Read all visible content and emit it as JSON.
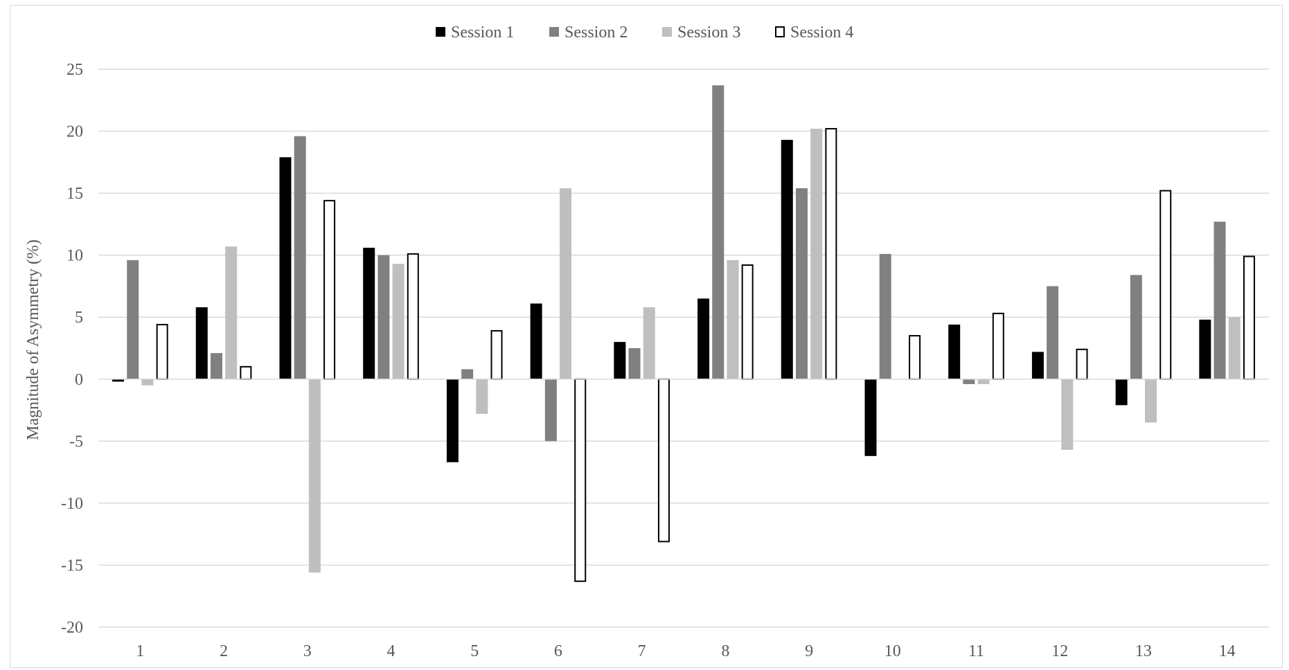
{
  "chart_data": {
    "type": "bar",
    "title": "",
    "xlabel": "",
    "ylabel": "Magnitude of Asymmetry (%)",
    "categories": [
      "1",
      "2",
      "3",
      "4",
      "5",
      "6",
      "7",
      "8",
      "9",
      "10",
      "11",
      "12",
      "13",
      "14"
    ],
    "ylim": [
      -20,
      25
    ],
    "yticks": [
      -20,
      -15,
      -10,
      -5,
      0,
      5,
      10,
      15,
      20,
      25
    ],
    "grid": true,
    "legend_position": "top-center",
    "series": [
      {
        "name": "Session 1",
        "color": "#000000",
        "fill": "solid",
        "values": [
          -0.2,
          5.8,
          17.9,
          10.6,
          -6.7,
          6.1,
          3.0,
          6.5,
          19.3,
          -6.2,
          4.4,
          2.2,
          -2.1,
          4.8
        ]
      },
      {
        "name": "Session 2",
        "color": "#808080",
        "fill": "solid",
        "values": [
          9.6,
          2.1,
          19.6,
          10.0,
          0.8,
          -5.0,
          2.5,
          23.7,
          15.4,
          10.1,
          -0.4,
          7.5,
          8.4,
          12.7
        ]
      },
      {
        "name": "Session 3",
        "color": "#bfbfbf",
        "fill": "solid",
        "values": [
          -0.5,
          10.7,
          -15.6,
          9.3,
          -2.8,
          15.4,
          5.8,
          9.6,
          20.2,
          0.0,
          -0.4,
          -5.7,
          -3.5,
          5.0
        ]
      },
      {
        "name": "Session 4",
        "color": "#000000",
        "fill": "outline",
        "values": [
          4.4,
          1.0,
          14.4,
          10.1,
          3.9,
          -16.3,
          -13.1,
          9.2,
          20.2,
          3.5,
          5.3,
          2.4,
          15.2,
          9.9
        ]
      }
    ]
  }
}
